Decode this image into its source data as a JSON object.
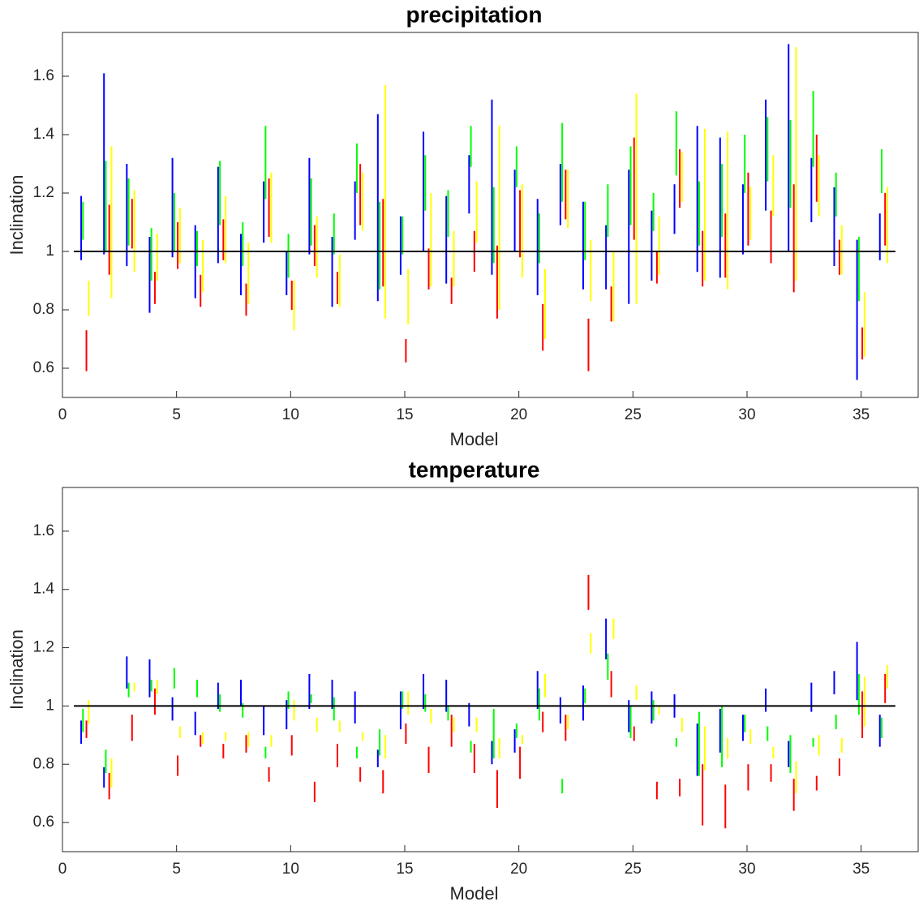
{
  "chart_data": [
    {
      "type": "range",
      "title": "precipitation",
      "xlabel": "Model",
      "ylabel": "Inclination",
      "x": [
        1,
        2,
        3,
        4,
        5,
        6,
        7,
        8,
        9,
        10,
        11,
        12,
        13,
        14,
        15,
        16,
        17,
        18,
        19,
        20,
        21,
        22,
        23,
        24,
        25,
        26,
        27,
        28,
        29,
        30,
        31,
        32,
        33,
        34,
        35,
        36
      ],
      "xlim": [
        0,
        37.5
      ],
      "xticks": [
        0,
        5,
        10,
        15,
        20,
        25,
        30,
        35
      ],
      "ylim": [
        0.5,
        1.75
      ],
      "yticks": [
        0.6,
        0.8,
        1,
        1.2,
        1.4,
        1.6
      ],
      "reference_line": 1,
      "series": [
        {
          "color": "#0000ff",
          "low": [
            0.97,
            0.99,
            0.95,
            0.79,
            0.98,
            0.84,
            0.96,
            0.85,
            1.03,
            0.85,
            0.99,
            0.81,
            1.04,
            0.83,
            0.92,
            1.0,
            0.89,
            1.13,
            0.92,
            1.0,
            0.85,
            1.09,
            0.87,
            0.87,
            0.82,
            0.9,
            1.06,
            0.93,
            0.91,
            0.99,
            1.14,
            1.0,
            1.1,
            0.95,
            0.56,
            0.97
          ],
          "high": [
            1.19,
            1.61,
            1.3,
            1.05,
            1.32,
            1.09,
            1.29,
            1.06,
            1.24,
            1.0,
            1.32,
            1.05,
            1.24,
            1.47,
            1.12,
            1.41,
            1.19,
            1.33,
            1.52,
            1.28,
            1.18,
            1.3,
            1.17,
            1.09,
            1.28,
            1.14,
            1.23,
            1.43,
            1.39,
            1.23,
            1.52,
            1.71,
            1.32,
            1.22,
            1.04,
            1.13
          ]
        },
        {
          "color": "#00ff00",
          "low": [
            1.04,
            1.0,
            1.02,
            0.9,
            1.0,
            0.95,
            1.09,
            0.95,
            1.18,
            0.91,
            1.02,
            0.99,
            1.2,
            0.87,
            0.99,
            1.14,
            1.05,
            1.29,
            0.96,
            1.22,
            0.96,
            1.17,
            0.97,
            1.05,
            1.09,
            1.07,
            1.26,
            1.02,
            1.05,
            1.2,
            1.24,
            1.15,
            1.29,
            1.12,
            0.83,
            1.2
          ],
          "high": [
            1.17,
            1.31,
            1.25,
            1.08,
            1.2,
            1.07,
            1.31,
            1.1,
            1.43,
            1.06,
            1.25,
            1.13,
            1.37,
            1.17,
            1.12,
            1.33,
            1.21,
            1.43,
            1.22,
            1.36,
            1.13,
            1.44,
            1.17,
            1.23,
            1.36,
            1.2,
            1.48,
            1.24,
            1.3,
            1.4,
            1.46,
            1.45,
            1.55,
            1.27,
            1.05,
            1.35
          ]
        },
        {
          "color": "#ff0000",
          "low": [
            0.59,
            0.92,
            1.01,
            0.82,
            0.94,
            0.81,
            0.97,
            0.78,
            1.05,
            0.8,
            0.95,
            0.82,
            1.09,
            0.88,
            0.62,
            0.87,
            0.82,
            0.93,
            0.77,
            0.98,
            0.66,
            1.11,
            0.59,
            0.76,
            1.04,
            0.89,
            1.15,
            0.88,
            0.91,
            1.02,
            0.96,
            0.86,
            1.17,
            0.92,
            0.63,
            1.02
          ],
          "high": [
            0.73,
            1.16,
            1.18,
            0.93,
            1.1,
            0.92,
            1.11,
            0.89,
            1.25,
            0.9,
            1.09,
            0.93,
            1.3,
            1.18,
            0.7,
            1.01,
            0.91,
            1.07,
            1.02,
            1.21,
            0.82,
            1.28,
            0.77,
            0.88,
            1.39,
            1.0,
            1.35,
            1.07,
            1.13,
            1.27,
            1.14,
            1.23,
            1.4,
            1.04,
            0.74,
            1.2
          ]
        },
        {
          "color": "#ffff00",
          "low": [
            0.78,
            0.84,
            0.93,
            0.9,
            0.96,
            0.86,
            0.96,
            0.82,
            1.03,
            0.73,
            0.91,
            0.81,
            1.07,
            0.77,
            0.75,
            0.88,
            0.88,
            1.03,
            0.8,
            0.91,
            0.7,
            1.08,
            0.83,
            0.76,
            0.82,
            0.92,
            1.17,
            0.9,
            0.87,
            1.04,
            1.12,
            0.9,
            1.12,
            0.92,
            0.64,
            0.96
          ],
          "high": [
            0.9,
            1.36,
            1.21,
            1.06,
            1.15,
            1.04,
            1.19,
            1.03,
            1.27,
            0.9,
            1.12,
            0.99,
            1.27,
            1.57,
            0.94,
            1.2,
            1.07,
            1.24,
            1.43,
            1.23,
            0.94,
            1.28,
            1.04,
            1.0,
            1.54,
            1.12,
            1.34,
            1.42,
            1.41,
            1.22,
            1.33,
            1.7,
            1.33,
            1.09,
            0.86,
            1.22
          ]
        }
      ]
    },
    {
      "type": "range",
      "title": "temperature",
      "xlabel": "Model",
      "ylabel": "Inclination",
      "x": [
        1,
        2,
        3,
        4,
        5,
        6,
        7,
        8,
        9,
        10,
        11,
        12,
        13,
        14,
        15,
        16,
        17,
        18,
        19,
        20,
        21,
        22,
        23,
        24,
        25,
        26,
        27,
        28,
        29,
        30,
        31,
        32,
        33,
        34,
        35,
        36
      ],
      "xlim": [
        0,
        37.5
      ],
      "xticks": [
        0,
        5,
        10,
        15,
        20,
        25,
        30,
        35
      ],
      "ylim": [
        0.5,
        1.75
      ],
      "yticks": [
        0.6,
        0.8,
        1,
        1.2,
        1.4,
        1.6
      ],
      "reference_line": 1,
      "series": [
        {
          "color": "#0000ff",
          "low": [
            0.87,
            0.72,
            1.06,
            1.03,
            0.95,
            0.9,
            0.99,
            1.0,
            0.9,
            0.92,
            0.99,
            0.99,
            0.94,
            0.79,
            0.92,
            0.99,
            0.98,
            0.93,
            0.8,
            0.84,
            0.99,
            0.94,
            0.95,
            1.16,
            0.91,
            0.94,
            0.96,
            0.76,
            0.84,
            0.88,
            0.98,
            0.79,
            0.98,
            1.04,
            1.02,
            0.86
          ],
          "high": [
            0.95,
            0.79,
            1.17,
            1.16,
            1.03,
            0.98,
            1.08,
            1.09,
            1.0,
            1.02,
            1.11,
            1.09,
            1.05,
            0.85,
            1.05,
            1.11,
            1.09,
            1.01,
            0.88,
            0.92,
            1.12,
            1.03,
            1.07,
            1.3,
            1.02,
            1.05,
            1.04,
            0.94,
            0.99,
            0.97,
            1.06,
            0.88,
            1.08,
            1.12,
            1.22,
            0.97
          ]
        },
        {
          "color": "#00ff00",
          "low": [
            0.91,
            0.77,
            1.03,
            1.05,
            1.06,
            1.03,
            0.98,
            0.96,
            0.82,
            0.99,
            1.01,
            0.95,
            0.82,
            0.83,
            0.99,
            0.98,
            0.95,
            0.84,
            0.82,
            0.89,
            0.95,
            0.7,
            1.01,
            1.09,
            0.89,
            0.95,
            0.86,
            0.76,
            0.79,
            0.91,
            0.88,
            0.77,
            0.86,
            0.92,
            0.97,
            0.89
          ],
          "high": [
            0.99,
            0.85,
            1.08,
            1.09,
            1.13,
            1.09,
            1.04,
            1.01,
            0.86,
            1.05,
            1.04,
            1.03,
            0.86,
            0.92,
            1.05,
            1.04,
            1.0,
            0.88,
            0.99,
            0.94,
            1.06,
            0.75,
            1.06,
            1.18,
            1.0,
            1.02,
            0.89,
            0.98,
            1.0,
            0.97,
            0.93,
            0.9,
            0.89,
            0.97,
            1.11,
            0.96
          ]
        },
        {
          "color": "#ff0000",
          "low": [
            0.89,
            0.68,
            0.88,
            0.97,
            0.76,
            0.86,
            0.82,
            0.84,
            0.74,
            0.83,
            0.67,
            0.79,
            0.74,
            0.7,
            0.87,
            0.77,
            0.86,
            0.77,
            0.65,
            0.75,
            0.91,
            0.88,
            1.33,
            1.03,
            0.88,
            0.68,
            0.69,
            0.59,
            0.58,
            0.71,
            0.74,
            0.64,
            0.71,
            0.76,
            0.89,
            1.01
          ],
          "high": [
            0.95,
            0.77,
            0.97,
            1.06,
            0.83,
            0.9,
            0.87,
            0.9,
            0.79,
            0.9,
            0.74,
            0.87,
            0.79,
            0.78,
            0.94,
            0.86,
            0.97,
            0.87,
            0.78,
            0.86,
            0.98,
            0.97,
            1.45,
            1.12,
            0.93,
            0.74,
            0.75,
            0.8,
            0.73,
            0.8,
            0.8,
            0.75,
            0.76,
            0.82,
            1.05,
            1.11
          ]
        },
        {
          "color": "#ffff00",
          "low": [
            0.94,
            0.72,
            1.05,
            1.04,
            0.89,
            0.87,
            0.88,
            0.86,
            0.86,
            0.95,
            0.91,
            0.91,
            0.88,
            0.82,
            0.97,
            0.94,
            0.91,
            0.91,
            0.82,
            0.87,
            1.03,
            0.92,
            1.18,
            1.23,
            1.02,
            0.97,
            0.91,
            0.78,
            0.82,
            0.87,
            0.82,
            0.7,
            0.83,
            0.84,
            0.93,
            1.06
          ],
          "high": [
            1.02,
            0.82,
            1.08,
            1.09,
            0.93,
            0.91,
            0.91,
            0.91,
            0.9,
            1.02,
            0.96,
            0.95,
            0.91,
            0.9,
            1.05,
            0.99,
            0.96,
            0.96,
            0.89,
            0.9,
            1.11,
            0.97,
            1.25,
            1.3,
            1.07,
            1.0,
            0.96,
            0.93,
            0.89,
            0.92,
            0.86,
            0.81,
            0.9,
            0.89,
            1.1,
            1.14
          ]
        }
      ]
    }
  ]
}
